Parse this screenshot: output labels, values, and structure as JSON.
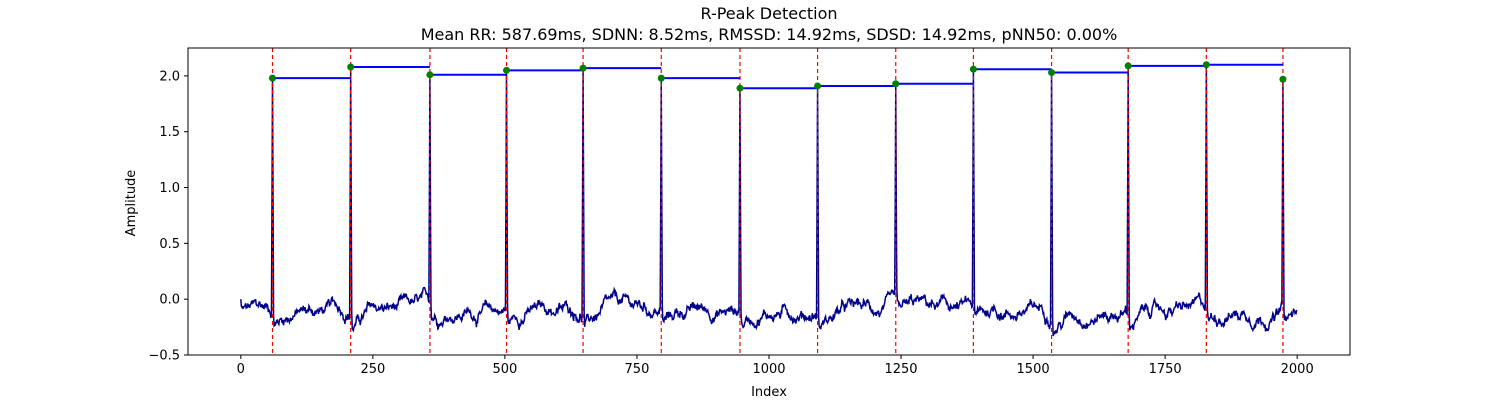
{
  "chart_data": {
    "type": "line",
    "title": "R-Peak Detection",
    "subtitle": "Mean RR: 587.69ms, SDNN: 8.52ms, RMSSD: 14.92ms, SDSD: 14.92ms, pNN50: 0.00%",
    "xlabel": "Index",
    "ylabel": "Amplitude",
    "xlim": [
      -100,
      2100
    ],
    "ylim": [
      -0.5,
      2.25
    ],
    "xticks": [
      0,
      250,
      500,
      750,
      1000,
      1250,
      1500,
      1750,
      2000
    ],
    "yticks": [
      -0.5,
      0.0,
      0.5,
      1.0,
      1.5,
      2.0
    ],
    "xtick_labels": [
      "0",
      "250",
      "500",
      "750",
      "1000",
      "1250",
      "1500",
      "1750",
      "2000"
    ],
    "ytick_labels": [
      "−0.5",
      "0.0",
      "0.5",
      "1.0",
      "1.5",
      "2.0"
    ],
    "grid": false,
    "signal_points": 2000,
    "r_peaks": {
      "x": [
        60,
        208,
        358,
        503,
        648,
        796,
        945,
        1092,
        1240,
        1387,
        1535,
        1680,
        1828,
        1973
      ],
      "y": [
        1.98,
        2.08,
        2.01,
        2.05,
        2.07,
        1.98,
        1.89,
        1.91,
        1.93,
        2.06,
        2.03,
        2.09,
        2.1,
        1.97
      ]
    },
    "colors": {
      "signal": "#00008b",
      "rr_segments": "#0000ff",
      "peak_lines": "#ff0000",
      "peak_markers": "#008000"
    }
  }
}
